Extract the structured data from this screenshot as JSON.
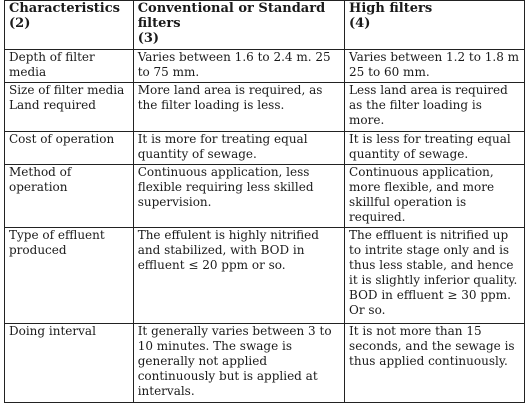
{
  "table": {
    "headers": [
      {
        "title": "Characteristics",
        "number": "(2)"
      },
      {
        "title": "Conventional or Standard filters",
        "number": "(3)"
      },
      {
        "title": "High filters",
        "number": "(4)"
      }
    ],
    "rows": [
      {
        "characteristic": "Depth of filter media",
        "conventional": "Varies between 1.6 to 2.4 m. 25 to 75 mm.",
        "high": "Varies between 1.2 to 1.8 m 25 to 60 mm."
      },
      {
        "characteristic": "Size of filter media Land required",
        "conventional": "More land area is required, as the filter loading is less.",
        "high": "Less land area is required as the filter loading is more."
      },
      {
        "characteristic": "Cost of operation",
        "conventional": "It is more for treating equal quantity of sewage.",
        "high": "It is less for treating equal quantity of sewage."
      },
      {
        "characteristic": "Method of operation",
        "conventional": "Continuous application, less flexible requiring less skilled supervision.",
        "high": "Continuous application, more flexible, and more skillful operation is required."
      },
      {
        "characteristic": "Type of effluent produced",
        "conventional": "The effulent is highly nitrified and stabilized, with BOD in effluent ≤ 20 ppm or so.",
        "high": "The effluent is nitrified up to intrite stage only and is thus less stable, and hence it is slightly inferior quality. BOD in effluent ≥ 30 ppm. Or so."
      },
      {
        "characteristic": "Doing interval",
        "conventional": "It generally varies between 3 to 10 minutes. The swage is generally not applied continuously but is applied at intervals.",
        "high": "It is not more than 15 seconds, and the sewage is thus applied continuously."
      }
    ]
  }
}
